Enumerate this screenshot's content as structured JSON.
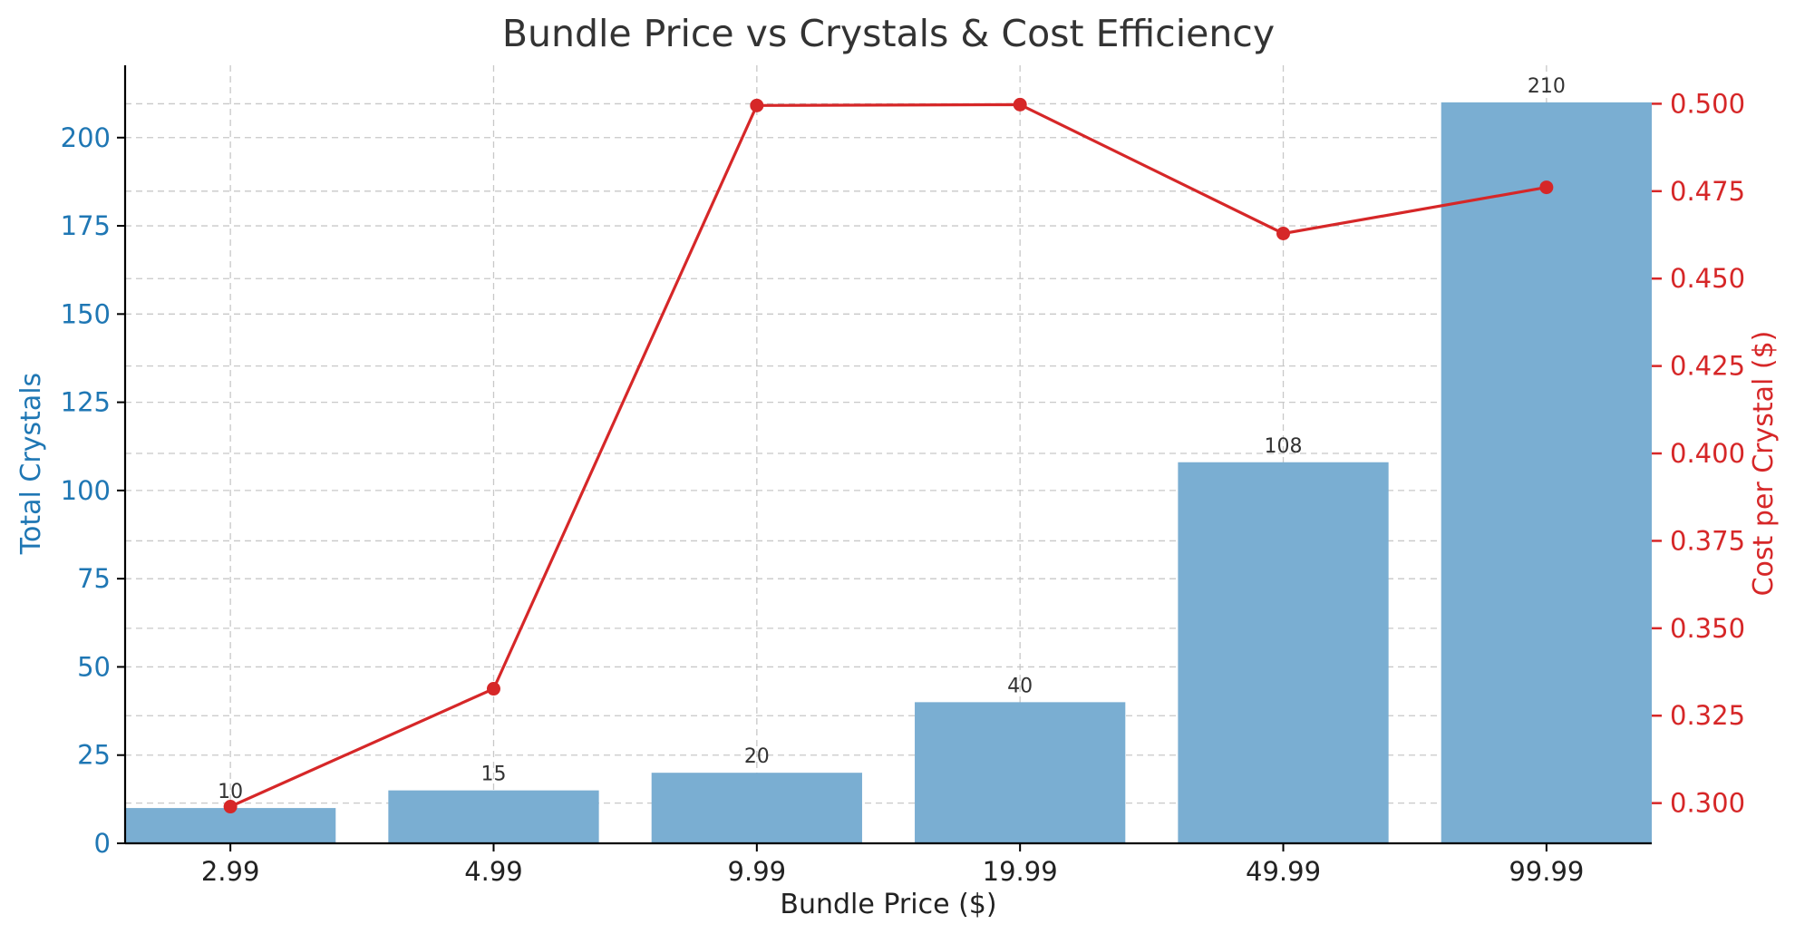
{
  "chart_data": {
    "type": "bar",
    "title": "Bundle Price vs Crystals & Cost Efficiency",
    "xlabel": "Bundle Price ($)",
    "categories": [
      "2.99",
      "4.99",
      "9.99",
      "19.99",
      "49.99",
      "99.99"
    ],
    "series": [
      {
        "type": "bar",
        "axis": "left",
        "values": [
          10,
          15,
          20,
          40,
          108,
          210
        ],
        "color": "#7aaed2",
        "data_labels": [
          "10",
          "15",
          "20",
          "40",
          "108",
          "210"
        ]
      },
      {
        "type": "line",
        "axis": "right",
        "values": [
          0.299,
          0.3327,
          0.4995,
          0.49975,
          0.4629,
          0.4761
        ],
        "color": "#d62728"
      }
    ],
    "y_left": {
      "label": "Total Crystals",
      "color": "#1f77b4",
      "ylim": [
        0,
        220.5
      ],
      "ticks": [
        0,
        25,
        50,
        75,
        100,
        125,
        150,
        175,
        200
      ],
      "tick_labels": [
        "0",
        "25",
        "50",
        "75",
        "100",
        "125",
        "150",
        "175",
        "200"
      ]
    },
    "y_right": {
      "label": "Cost per Crystal ($)",
      "color": "#d62728",
      "ylim": [
        0.2885,
        0.511
      ],
      "ticks": [
        0.3,
        0.325,
        0.35,
        0.375,
        0.4,
        0.425,
        0.45,
        0.475,
        0.5
      ],
      "tick_labels": [
        "0.300",
        "0.325",
        "0.350",
        "0.375",
        "0.400",
        "0.425",
        "0.450",
        "0.475",
        "0.500"
      ]
    },
    "grid": true
  }
}
